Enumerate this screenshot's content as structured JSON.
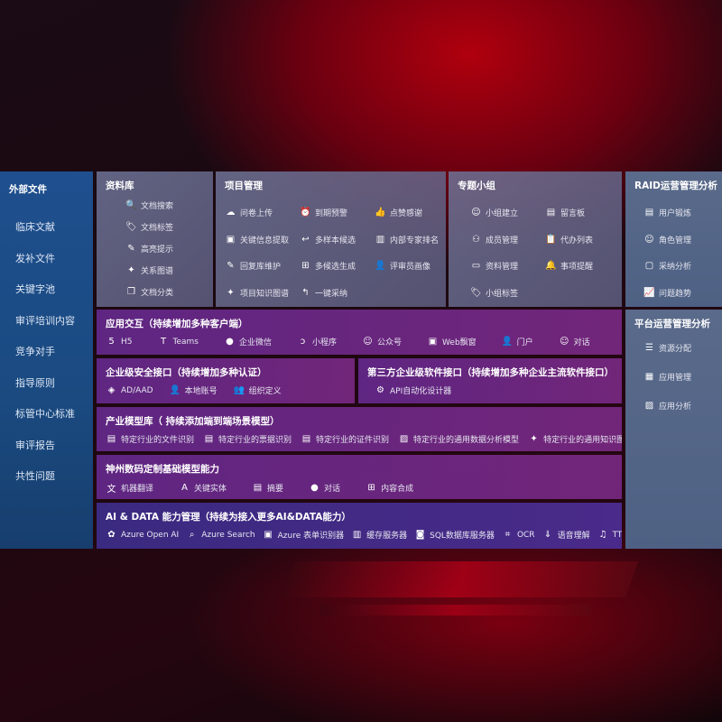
{
  "sidebar": {
    "title": "外部文件",
    "items": [
      "临床文献",
      "发补文件",
      "关键字池",
      "审评培训内容",
      "竞争对手",
      "指导原则",
      "标管中心标准",
      "审评报告",
      "共性问题"
    ]
  },
  "library": {
    "title": "资料库",
    "items": [
      {
        "icon": "doc-search-icon",
        "label": "文档搜索"
      },
      {
        "icon": "tag-icon",
        "label": "文档标签"
      },
      {
        "icon": "pen-icon",
        "label": "高亮提示"
      },
      {
        "icon": "graph-icon",
        "label": "关系图谱"
      },
      {
        "icon": "doc-copy-icon",
        "label": "文档分类"
      }
    ]
  },
  "project": {
    "title": "项目管理",
    "items": [
      {
        "icon": "cloud-upload-icon",
        "label": "问卷上传"
      },
      {
        "icon": "alarm-icon",
        "label": "到期预警"
      },
      {
        "icon": "thumbs-up-icon",
        "label": "点赞感谢"
      },
      {
        "icon": "window-icon",
        "label": "关键信息提取"
      },
      {
        "icon": "reply-all-icon",
        "label": "多样本候选"
      },
      {
        "icon": "ranking-icon",
        "label": "内部专家排名"
      },
      {
        "icon": "pen-icon",
        "label": "回复库维护"
      },
      {
        "icon": "puzzle-icon",
        "label": "多候选生成"
      },
      {
        "icon": "user-icon",
        "label": "评审员画像"
      },
      {
        "icon": "graph-icon",
        "label": "项目知识图谱"
      },
      {
        "icon": "reply-icon",
        "label": "一键采纳"
      }
    ]
  },
  "group": {
    "title": "专题小组",
    "items": [
      {
        "icon": "users-icon",
        "label": "小组建立"
      },
      {
        "icon": "bbs-icon",
        "label": "留言板"
      },
      {
        "icon": "user-add-icon",
        "label": "成员管理"
      },
      {
        "icon": "clipboard-icon",
        "label": "代办列表"
      },
      {
        "icon": "folder-icon",
        "label": "资料管理"
      },
      {
        "icon": "bell-icon",
        "label": "事项提醒"
      },
      {
        "icon": "tag-icon",
        "label": "小组标签"
      }
    ]
  },
  "raid": {
    "title": "RAID运营管理分析",
    "items": [
      {
        "icon": "id-card-icon",
        "label": "用户锻炼"
      },
      {
        "icon": "users-icon",
        "label": "角色管理"
      },
      {
        "icon": "qa-icon",
        "label": "采纳分析"
      },
      {
        "icon": "trend-icon",
        "label": "问题趋势"
      }
    ]
  },
  "platform": {
    "title": "平台运营管理分析",
    "items": [
      {
        "icon": "checklist-icon",
        "label": "资源分配"
      },
      {
        "icon": "apps-icon",
        "label": "应用管理"
      },
      {
        "icon": "chart-icon",
        "label": "应用分析"
      }
    ]
  },
  "app": {
    "title": "应用交互（持续增加多种客户端）",
    "items": [
      {
        "icon": "html5-icon",
        "label": "H5"
      },
      {
        "icon": "teams-icon",
        "label": "Teams"
      },
      {
        "icon": "wechat-icon",
        "label": "企业微信"
      },
      {
        "icon": "miniprogram-icon",
        "label": "小程序"
      },
      {
        "icon": "users-icon",
        "label": "公众号"
      },
      {
        "icon": "window-icon",
        "label": "Web飘窗"
      },
      {
        "icon": "portal-icon",
        "label": "门户"
      },
      {
        "icon": "chat-users-icon",
        "label": "对话"
      }
    ]
  },
  "security": {
    "title": "企业级安全接口（持续增加多种认证）",
    "items": [
      {
        "icon": "ad-icon",
        "label": "AD/AAD"
      },
      {
        "icon": "user-lock-icon",
        "label": "本地账号"
      },
      {
        "icon": "org-icon",
        "label": "组织定义"
      }
    ]
  },
  "thirdparty": {
    "title": "第三方企业级软件接口（持续增加多种企业主流软件接口）",
    "items": [
      {
        "icon": "gear-icon",
        "label": "API自动化设计器"
      }
    ]
  },
  "industry": {
    "title": "产业模型库（ 持续添加端到端场景模型）",
    "items": [
      {
        "icon": "doc-icon",
        "label": "特定行业的文件识别"
      },
      {
        "icon": "receipt-icon",
        "label": "特定行业的票据识别"
      },
      {
        "icon": "id-card-icon",
        "label": "特定行业的证件识别"
      },
      {
        "icon": "chart-icon",
        "label": "特定行业的通用数据分析模型"
      },
      {
        "icon": "graph-icon",
        "label": "特定行业的通用知识图谱模型"
      }
    ]
  },
  "base": {
    "title": "神州数码定制基础模型能力",
    "items": [
      {
        "icon": "translate-icon",
        "label": "机器翻译"
      },
      {
        "icon": "entity-icon",
        "label": "关键实体"
      },
      {
        "icon": "doc-icon",
        "label": "摘要"
      },
      {
        "icon": "chat-icon",
        "label": "对话"
      },
      {
        "icon": "puzzle-icon",
        "label": "内容合成"
      }
    ]
  },
  "ai": {
    "title": "AI & DATA 能力管理（持续为接入更多AI&DATA能力）",
    "items": [
      {
        "icon": "openai-icon",
        "label": "Azure Open AI"
      },
      {
        "icon": "search-doc-icon",
        "label": "Azure Search"
      },
      {
        "icon": "form-icon",
        "label": "Azure 表单识别器"
      },
      {
        "icon": "cache-icon",
        "label": "缓存服务器"
      },
      {
        "icon": "sql-icon",
        "label": "SQL数据库服务器"
      },
      {
        "icon": "ocr-icon",
        "label": "OCR"
      },
      {
        "icon": "speech-icon",
        "label": "语音理解"
      },
      {
        "icon": "tts-icon",
        "label": "TTS"
      }
    ]
  }
}
